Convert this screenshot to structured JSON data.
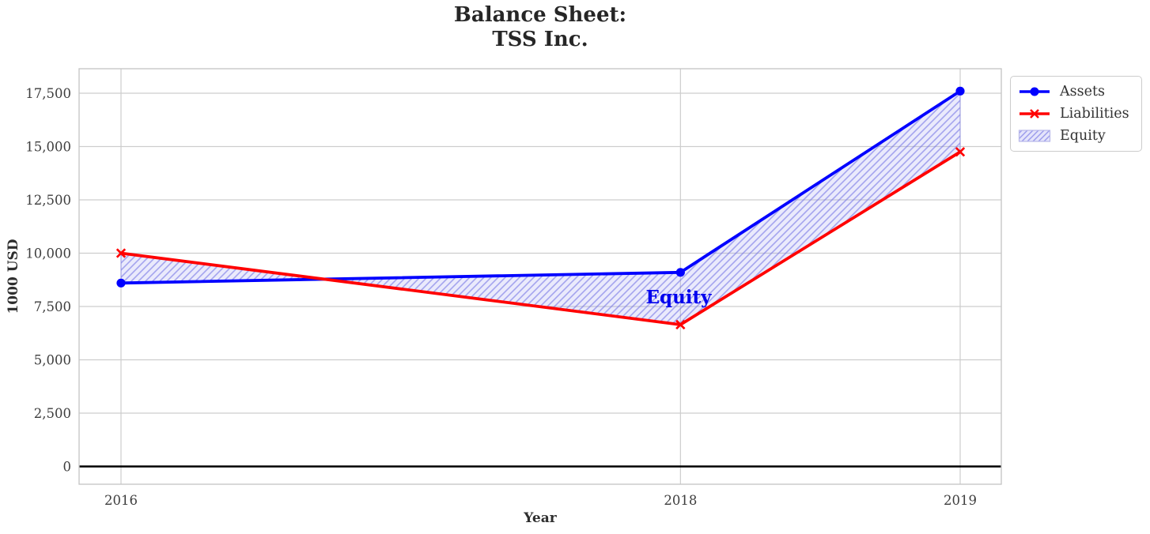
{
  "title": {
    "line1": "Balance Sheet:",
    "line2": "TSS Inc."
  },
  "axes": {
    "x_label": "Year",
    "y_label": "1000 USD",
    "x_ticks": [
      {
        "value": 2016,
        "label": "2016"
      },
      {
        "value": 2018,
        "label": "2018"
      },
      {
        "value": 2019,
        "label": "2019"
      }
    ],
    "y_ticks": [
      {
        "value": 0,
        "label": "0"
      },
      {
        "value": 2500,
        "label": "2,500"
      },
      {
        "value": 5000,
        "label": "5,000"
      },
      {
        "value": 7500,
        "label": "7,500"
      },
      {
        "value": 10000,
        "label": "10,000"
      },
      {
        "value": 12500,
        "label": "12,500"
      },
      {
        "value": 15000,
        "label": "15,000"
      },
      {
        "value": 17500,
        "label": "17,500"
      }
    ]
  },
  "legend": {
    "items": [
      {
        "label": "Assets",
        "swatch": "blue-line-circle-marker"
      },
      {
        "label": "Liabilities",
        "swatch": "red-line-x-marker"
      },
      {
        "label": "Equity",
        "swatch": "hatched-patch"
      }
    ]
  },
  "annotation": {
    "text": "Equity",
    "color": "#0000ee"
  },
  "colors": {
    "assets": "#0000ff",
    "liabilities": "#ff0000",
    "equity_fill": "rgba(148,148,238,0.20)",
    "equity_hatch": "rgba(105,105,225,0.55)",
    "grid": "#cdcdcd",
    "zero_line": "#000000"
  },
  "chart_data": {
    "type": "line",
    "title": "Balance Sheet: TSS Inc.",
    "xlabel": "Year",
    "ylabel": "1000 USD",
    "x": [
      2016,
      2018,
      2019
    ],
    "series": [
      {
        "name": "Assets",
        "values": [
          8600,
          9100,
          17600
        ],
        "color": "#0000ff",
        "marker": "circle",
        "linewidth": 3.8
      },
      {
        "name": "Liabilities",
        "values": [
          10000,
          6650,
          14750
        ],
        "color": "#ff0000",
        "marker": "x",
        "linewidth": 3.8
      },
      {
        "name": "Equity",
        "type": "area-between",
        "between": [
          "Assets",
          "Liabilities"
        ],
        "values": [
          -1400,
          2450,
          2850
        ],
        "hatch": "/",
        "fill": "lavender-hatched"
      }
    ],
    "grid": true,
    "zero_baseline": true,
    "xlim": [
      2015.85,
      2019.15
    ],
    "ylim": [
      -850,
      18700
    ],
    "legend_position": "outside upper right"
  }
}
